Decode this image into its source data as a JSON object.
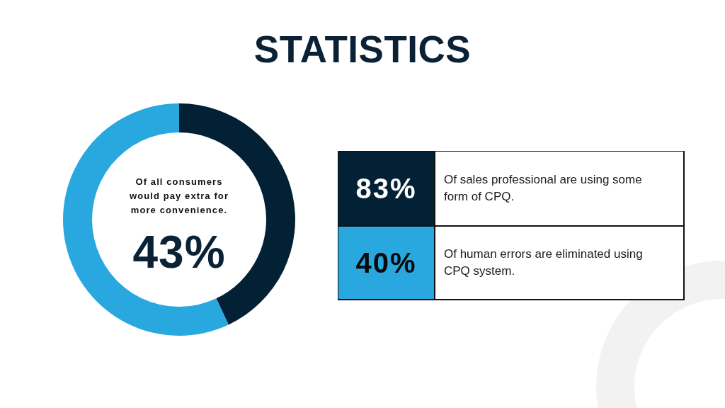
{
  "chart_data": [
    {
      "type": "donut",
      "title": "STATISTICS",
      "categories": [
        null,
        null
      ],
      "values": [
        43,
        57
      ],
      "colors": [
        "#032135",
        "#29a8e0"
      ],
      "annotations": [
        "Of all consumers would pay extra for more convenience.",
        "43%"
      ]
    },
    {
      "type": "other",
      "annotations": [
        "83%",
        "Of sales professional are using some form of CPQ.",
        "40%",
        "Of human errors are eliminated using CPQ system."
      ]
    }
  ]
}
